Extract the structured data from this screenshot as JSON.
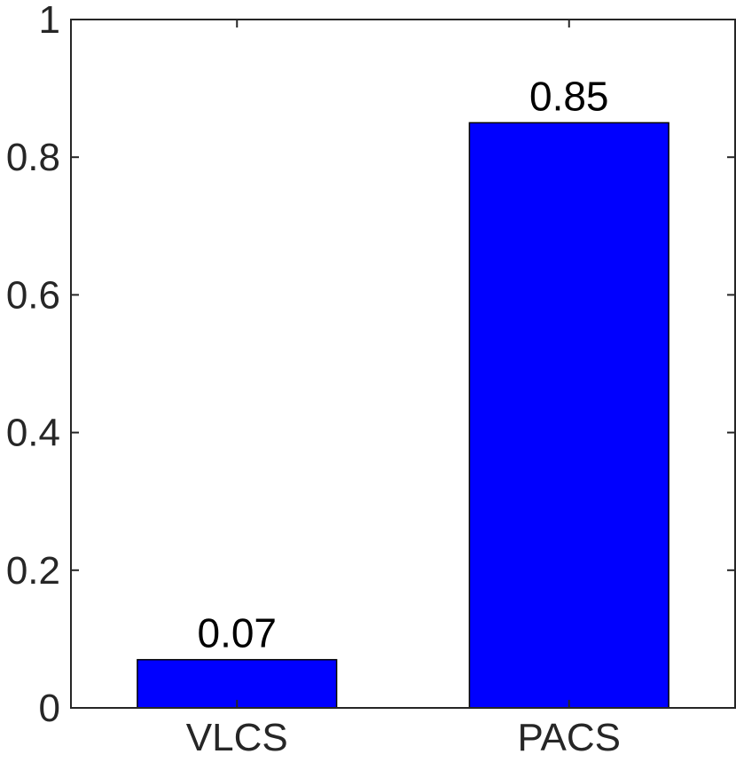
{
  "chart_data": {
    "type": "bar",
    "title": "",
    "xlabel": "",
    "ylabel": "",
    "categories": [
      "VLCS",
      "PACS"
    ],
    "values": [
      0.07,
      0.85
    ],
    "data_labels": [
      "0.07",
      "0.85"
    ],
    "ylim": [
      0,
      1
    ],
    "yticks": [
      0,
      0.2,
      0.4,
      0.6,
      0.8,
      1
    ],
    "ytick_labels": [
      "0",
      "0.2",
      "0.4",
      "0.6",
      "0.8",
      "1"
    ],
    "grid": false,
    "legend": "none",
    "bar_color": "#0000ff"
  }
}
